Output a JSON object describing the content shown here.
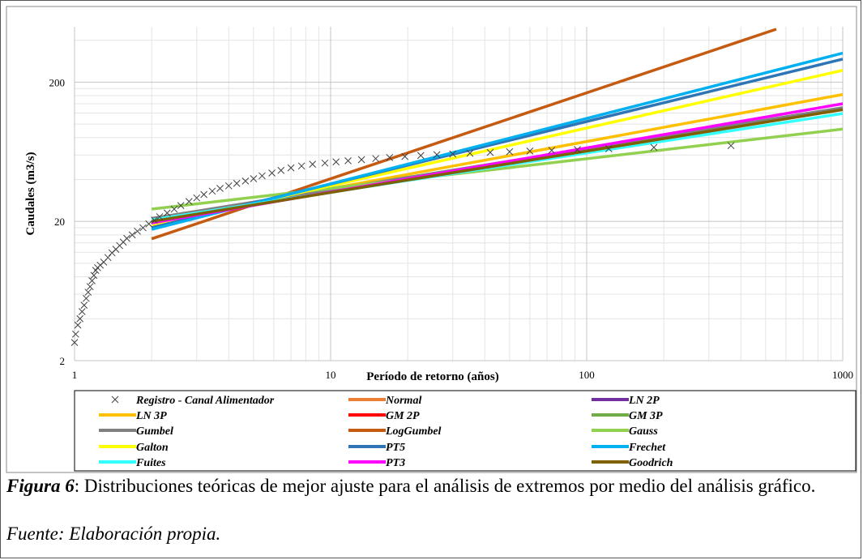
{
  "chart_data": {
    "type": "line",
    "xscale": "log",
    "yscale": "log",
    "xlim": [
      1,
      1000
    ],
    "ylim": [
      2,
      500
    ],
    "xticks": [
      "1",
      "10",
      "100",
      "1000"
    ],
    "yticks": [
      "2",
      "20",
      "200"
    ],
    "xlabel": "Período de retorno (años)",
    "ylabel": "Caudales (m3/s)",
    "grid": true,
    "legend_position": "bottom",
    "observed": {
      "name": "Registro - Canal Alimentador",
      "marker": "x",
      "color": "#404040",
      "points": [
        [
          1.0,
          2.7
        ],
        [
          1.01,
          3.1
        ],
        [
          1.03,
          3.6
        ],
        [
          1.05,
          4.0
        ],
        [
          1.07,
          4.5
        ],
        [
          1.09,
          5.0
        ],
        [
          1.11,
          5.6
        ],
        [
          1.13,
          6.2
        ],
        [
          1.15,
          6.8
        ],
        [
          1.17,
          7.5
        ],
        [
          1.19,
          8.2
        ],
        [
          1.21,
          8.9
        ],
        [
          1.23,
          9.3
        ],
        [
          1.26,
          9.7
        ],
        [
          1.3,
          10.2
        ],
        [
          1.35,
          11.0
        ],
        [
          1.4,
          11.9
        ],
        [
          1.45,
          12.6
        ],
        [
          1.5,
          13.4
        ],
        [
          1.55,
          14.2
        ],
        [
          1.6,
          15.1
        ],
        [
          1.68,
          16.0
        ],
        [
          1.76,
          17.0
        ],
        [
          1.85,
          18.0
        ],
        [
          1.95,
          19.2
        ],
        [
          2.05,
          20.4
        ],
        [
          2.15,
          21.6
        ],
        [
          2.3,
          23.0
        ],
        [
          2.45,
          24.5
        ],
        [
          2.6,
          26.0
        ],
        [
          2.8,
          27.8
        ],
        [
          3.0,
          29.5
        ],
        [
          3.2,
          31.2
        ],
        [
          3.45,
          33.0
        ],
        [
          3.7,
          34.5
        ],
        [
          4.0,
          36.0
        ],
        [
          4.3,
          37.5
        ],
        [
          4.65,
          39.0
        ],
        [
          5.0,
          40.5
        ],
        [
          5.4,
          42.5
        ],
        [
          5.9,
          44.5
        ],
        [
          6.4,
          46.5
        ],
        [
          7.0,
          48.5
        ],
        [
          7.7,
          50.0
        ],
        [
          8.5,
          51.5
        ],
        [
          9.5,
          52.5
        ],
        [
          10.5,
          53.5
        ],
        [
          11.7,
          54.5
        ],
        [
          13.2,
          55.5
        ],
        [
          15.0,
          56.5
        ],
        [
          17.0,
          57.5
        ],
        [
          19.5,
          58.5
        ],
        [
          22.5,
          59.5
        ],
        [
          26.0,
          60.3
        ],
        [
          30.0,
          61.0
        ],
        [
          35.0,
          61.7
        ],
        [
          42.0,
          62.5
        ],
        [
          50.0,
          63.3
        ],
        [
          60.0,
          64.0
        ],
        [
          73.0,
          64.8
        ],
        [
          92.0,
          65.5
        ],
        [
          122.0,
          66.5
        ],
        [
          183.0,
          68.0
        ],
        [
          366.0,
          70.0
        ]
      ]
    },
    "series": [
      {
        "name": "Normal",
        "color": "#ED7D31",
        "x": [
          2,
          1000
        ],
        "y": [
          24.0,
          98.0
        ],
        "visible": false
      },
      {
        "name": "LN 2P",
        "color": "#7030A0",
        "x": [
          2,
          1000
        ],
        "y": [
          22.0,
          125.0
        ],
        "visible": false
      },
      {
        "name": "LN 3P",
        "color": "#FFC000",
        "x": [
          2,
          1000
        ],
        "y": [
          20.0,
          163.0
        ]
      },
      {
        "name": "GM 2P",
        "color": "#FF0000",
        "x": [
          2,
          1000
        ],
        "y": [
          21.0,
          120.0
        ],
        "visible": false
      },
      {
        "name": "GM 3P",
        "color": "#70AD47",
        "x": [
          2,
          1000
        ],
        "y": [
          21.5,
          128.0
        ],
        "visible": false
      },
      {
        "name": "Gumbel",
        "color": "#808080",
        "x": [
          2,
          1000
        ],
        "y": [
          21.0,
          131.0
        ]
      },
      {
        "name": "LogGumbel",
        "color": "#C55A11",
        "x": [
          2,
          550
        ],
        "y": [
          15.0,
          480.0
        ]
      },
      {
        "name": "Gauss",
        "color": "#92D050",
        "x": [
          2,
          1000
        ],
        "y": [
          24.5,
          92.0
        ]
      },
      {
        "name": "Galton",
        "color": "#FFFF00",
        "x": [
          2,
          1000
        ],
        "y": [
          18.5,
          243.0
        ]
      },
      {
        "name": "PT5",
        "color": "#2E75B6",
        "x": [
          2,
          1000
        ],
        "y": [
          18.0,
          293.0
        ]
      },
      {
        "name": "Frechet",
        "color": "#00B0F0",
        "x": [
          2,
          1000
        ],
        "y": [
          17.5,
          323.0
        ]
      },
      {
        "name": "Fuites",
        "color": "#33FFFF",
        "x": [
          2,
          1000
        ],
        "y": [
          20.5,
          119.0
        ]
      },
      {
        "name": "PT3",
        "color": "#FF00FF",
        "x": [
          2,
          1000
        ],
        "y": [
          19.5,
          140.0
        ]
      },
      {
        "name": "Goodrich",
        "color": "#7F6000",
        "x": [
          2,
          1000
        ],
        "y": [
          20.0,
          127.0
        ]
      }
    ]
  },
  "caption": {
    "label": "Figura 6",
    "text": ": Distribuciones teóricas de mejor ajuste para el análisis de extremos por medio del análisis gráfico."
  },
  "source": "Fuente: Elaboración propia."
}
